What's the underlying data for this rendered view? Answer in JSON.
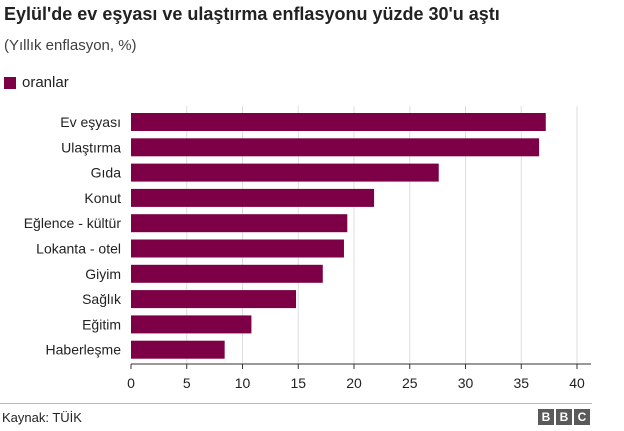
{
  "title": "Eylül'de ev eşyası ve ulaştırma enflasyonu yüzde 30'u aştı",
  "subtitle": "(Yıllık enflasyon, %)",
  "source": "Kaynak: TÜİK",
  "logo": [
    "B",
    "B",
    "C"
  ],
  "colors": {
    "bar": "#7d0046",
    "grid": "#dddddd",
    "axis": "#333333"
  },
  "chart_data": {
    "type": "bar",
    "orientation": "horizontal",
    "categories": [
      "Ev eşyası",
      "Ulaştırma",
      "Gıda",
      "Konut",
      "Eğlence - kültür",
      "Lokanta - otel",
      "Giyim",
      "Sağlık",
      "Eğitim",
      "Haberleşme"
    ],
    "series": [
      {
        "name": "oranlar",
        "values": [
          37.2,
          36.6,
          27.6,
          21.8,
          19.4,
          19.1,
          17.2,
          14.8,
          10.8,
          8.4
        ]
      }
    ],
    "xlim": [
      0,
      40
    ],
    "xticks": [
      0,
      5,
      10,
      15,
      20,
      25,
      30,
      35,
      40
    ],
    "grid": true,
    "legend": "top-left"
  }
}
